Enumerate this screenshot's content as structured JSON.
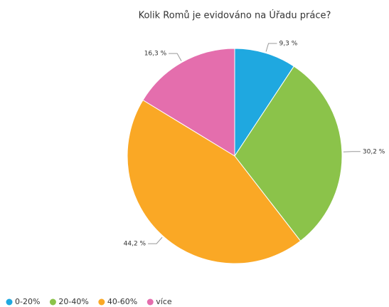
{
  "chart_data": {
    "type": "pie",
    "title": "Kolik Romů je evidováno na Úřadu práce?",
    "categories": [
      "0-20%",
      "20-40%",
      "40-60%",
      "více"
    ],
    "values": [
      9.3,
      30.2,
      44.2,
      16.3
    ],
    "value_labels": [
      "9,3 %",
      "30,2 %",
      "44,2 %",
      "16,3 %"
    ],
    "colors": [
      "#1fa8e0",
      "#8bc34a",
      "#faa825",
      "#e46ead"
    ],
    "legend": "bottom-left"
  }
}
